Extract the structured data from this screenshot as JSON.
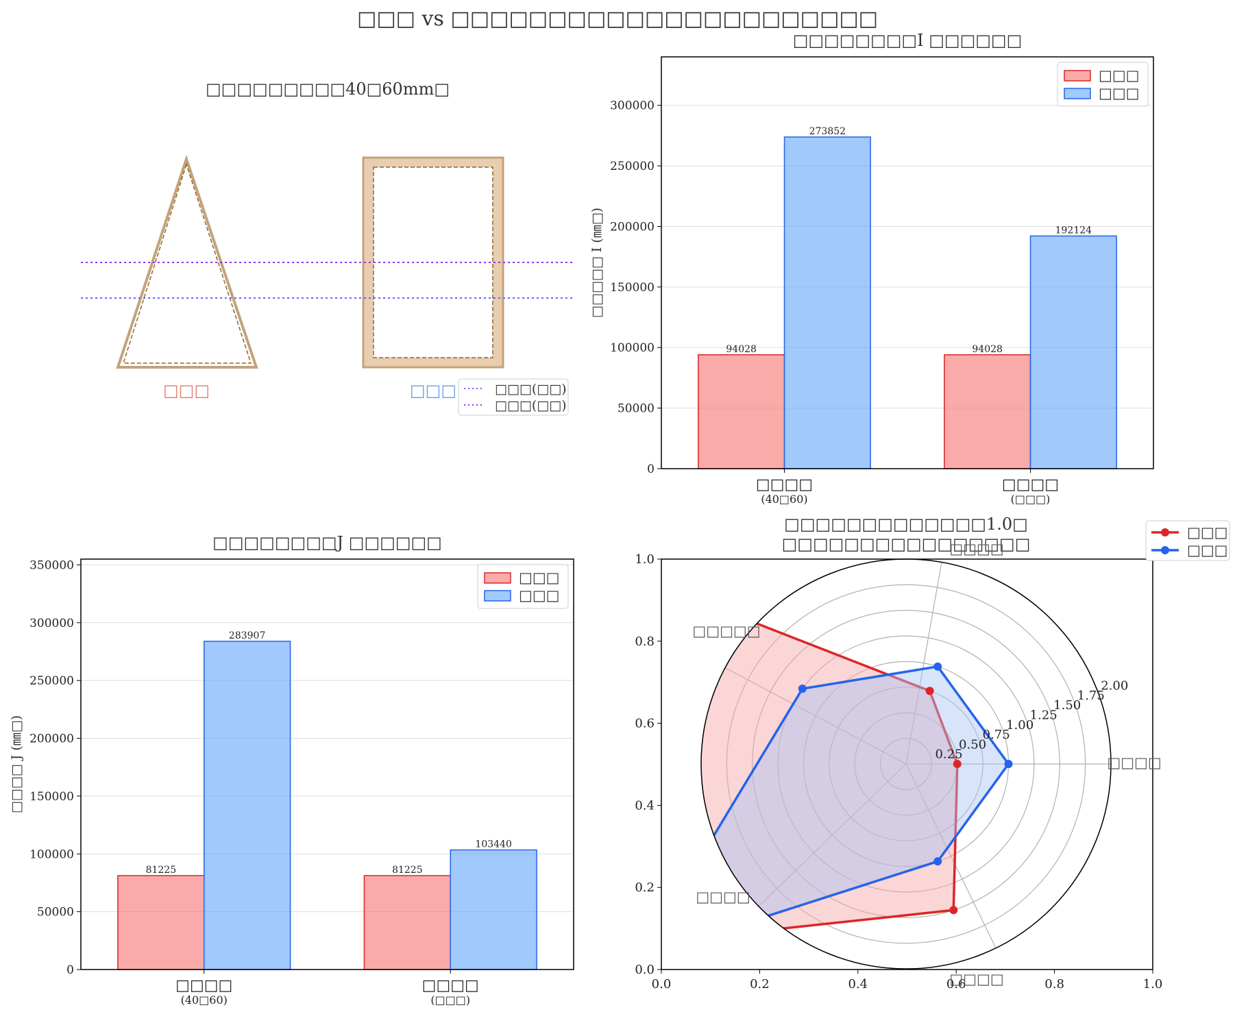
{
  "suptitle": "□□□ vs □□□□□□□□□□□□□□□□□□□□□□",
  "colors": {
    "tri_fill": "#f87171",
    "tri_edge": "#dc2626",
    "rect_fill": "#60a5fa",
    "rect_edge": "#2563eb",
    "section_fill": "#e8cdb0",
    "section_edge": "#c4a27a",
    "section_inner": "#8b6a2e",
    "line_a": "#6366f1",
    "line_b": "#9333ea",
    "grid": "#dddddd",
    "axis": "#000000"
  },
  "panel_a": {
    "title": "□□□□□□□□□40□60mm□",
    "label_tri": "□□□",
    "label_rect": "□□□",
    "legend": [
      "□□□(□□)",
      "□□□(□□)"
    ]
  },
  "panel_b": {
    "title": "□□□□□□□□I □□□□□□",
    "chart_data": {
      "type": "bar",
      "ylabel": "□□□□□ I (㎜□)",
      "ylim": [
        0,
        340000
      ],
      "yticks": [
        0,
        50000,
        100000,
        150000,
        200000,
        250000,
        300000
      ],
      "categories": [
        "□□□□",
        "□□□□"
      ],
      "category_sublabels": [
        "(40□60)",
        "(□□□)"
      ],
      "series": [
        {
          "name": "□□□",
          "values": [
            94028,
            94028
          ]
        },
        {
          "name": "□□□",
          "values": [
            273852,
            192124
          ]
        }
      ],
      "data_labels": [
        [
          "94028",
          "94028"
        ],
        [
          "273852",
          "192124"
        ]
      ],
      "legend": "top-right",
      "grid": "y"
    }
  },
  "panel_c": {
    "title": "□□□□□□□□J □□□□□□",
    "chart_data": {
      "type": "bar",
      "ylabel": "□□□□ J (㎜□)",
      "ylim": [
        0,
        355000
      ],
      "yticks": [
        0,
        50000,
        100000,
        150000,
        200000,
        250000,
        300000,
        350000
      ],
      "categories": [
        "□□□□",
        "□□□□"
      ],
      "category_sublabels": [
        "(40□60)",
        "(□□□)"
      ],
      "series": [
        {
          "name": "□□□",
          "values": [
            81225,
            81225
          ]
        },
        {
          "name": "□□□",
          "values": [
            283907,
            103440
          ]
        }
      ],
      "data_labels": [
        [
          "81225",
          "81225"
        ],
        [
          "283907",
          "103440"
        ]
      ],
      "legend": "top-right",
      "grid": "y"
    }
  },
  "panel_d": {
    "title": [
      "□□□□□□□□□□□□□1.0□",
      "□□□□□□□□□□□□□□□□"
    ],
    "chart_data": {
      "type": "radar",
      "axes": [
        "□□□□",
        "□□□□",
        "□□□□□",
        "□□□□",
        "□□□□"
      ],
      "axis_angles_deg": [
        0,
        72,
        144,
        216,
        288
      ],
      "rmax": 2.0,
      "rticks": [
        "0.25",
        "0.50",
        "0.75",
        "1.00",
        "1.25",
        "1.50",
        "1.75",
        "2.00"
      ],
      "series": [
        {
          "name": "□□□",
          "values": [
            0.5,
            0.75,
            2.95,
            2.95,
            1.5
          ]
        },
        {
          "name": "□□□",
          "values": [
            1.0,
            1.0,
            1.25,
            3.2,
            1.0
          ]
        }
      ],
      "frame_ticks": [
        "0.0",
        "0.2",
        "0.4",
        "0.6",
        "0.8",
        "1.0"
      ],
      "legend": "outside-top-right"
    }
  }
}
